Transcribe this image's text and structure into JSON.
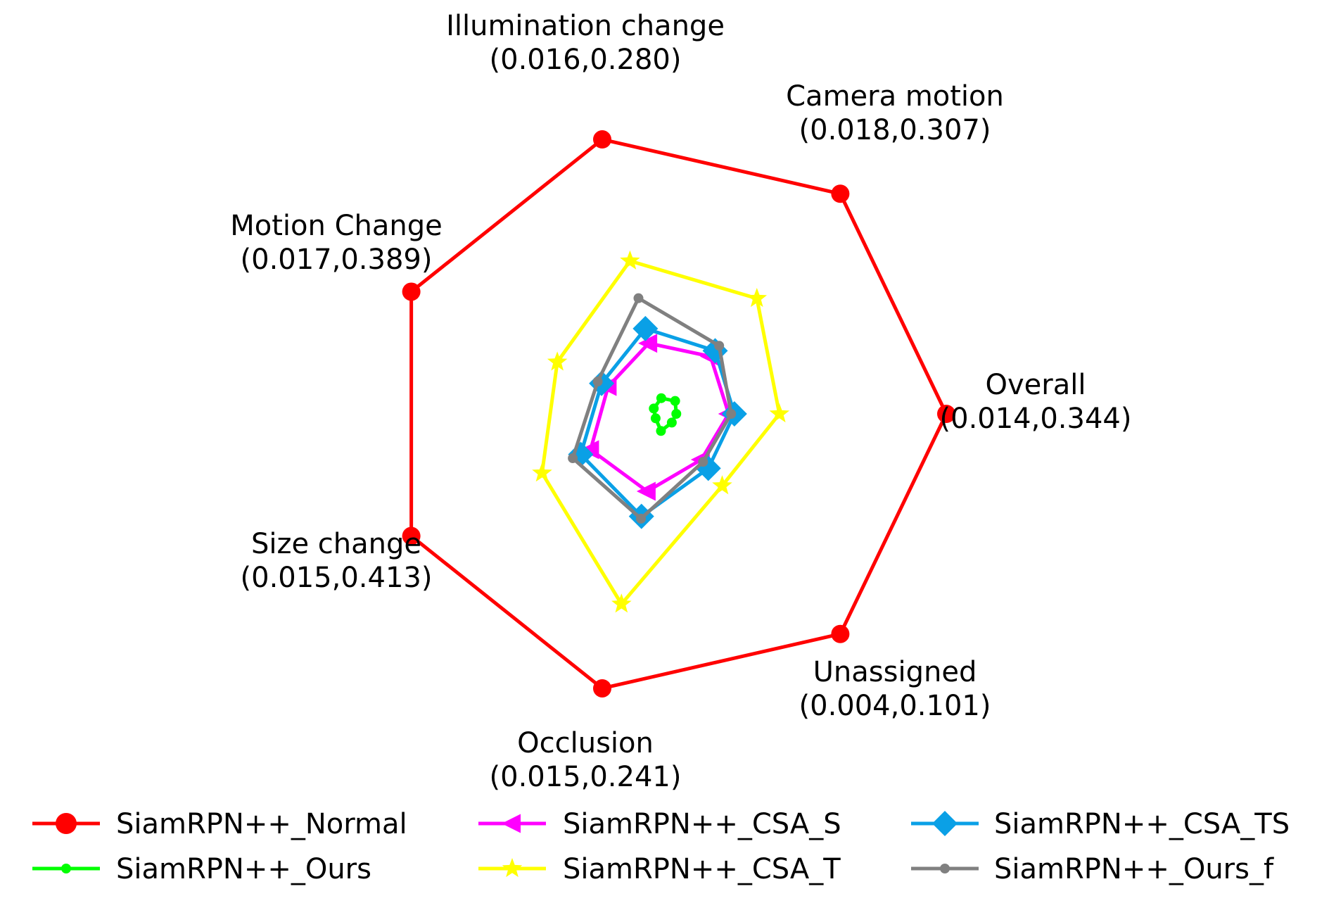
{
  "chart_data": {
    "type": "radar",
    "title": "",
    "axes": [
      {
        "name": "Overall",
        "range": "(0.014,0.344)"
      },
      {
        "name": "Camera motion",
        "range": "(0.018,0.307)"
      },
      {
        "name": "Illumination change",
        "range": "(0.016,0.280)"
      },
      {
        "name": "Motion Change",
        "range": "(0.017,0.389)"
      },
      {
        "name": "Size change",
        "range": "(0.015,0.413)"
      },
      {
        "name": "Occlusion",
        "range": "(0.015,0.241)"
      },
      {
        "name": "Unassigned",
        "range": "(0.004,0.101)"
      }
    ],
    "series": [
      {
        "name": "SiamRPN++_Normal",
        "color": "#ff0000",
        "marker": "circle",
        "values": [
          0.344,
          0.307,
          0.28,
          0.389,
          0.413,
          0.241,
          0.101
        ]
      },
      {
        "name": "SiamRPN++_Ours",
        "color": "#00ff00",
        "marker": "dot",
        "values": [
          0.014,
          0.018,
          0.016,
          0.017,
          0.015,
          0.015,
          0.004
        ]
      },
      {
        "name": "SiamRPN++_CSA_S",
        "color": "#ff00ff",
        "marker": "triangle-left",
        "values": [
          0.078,
          0.08,
          0.072,
          0.087,
          0.121,
          0.068,
          0.021
        ]
      },
      {
        "name": "SiamRPN++_CSA_T",
        "color": "#ffff00",
        "marker": "star",
        "values": [
          0.14,
          0.161,
          0.156,
          0.165,
          0.2,
          0.167,
          0.033
        ]
      },
      {
        "name": "SiamRPN++_CSA_TS",
        "color": "#0aa0e6",
        "marker": "diamond",
        "values": [
          0.085,
          0.088,
          0.087,
          0.097,
          0.137,
          0.09,
          0.025
        ]
      },
      {
        "name": "SiamRPN++_Ours_f",
        "color": "#808080",
        "marker": "dot",
        "values": [
          0.081,
          0.095,
          0.118,
          0.103,
          0.15,
          0.092,
          0.022
        ]
      }
    ]
  }
}
